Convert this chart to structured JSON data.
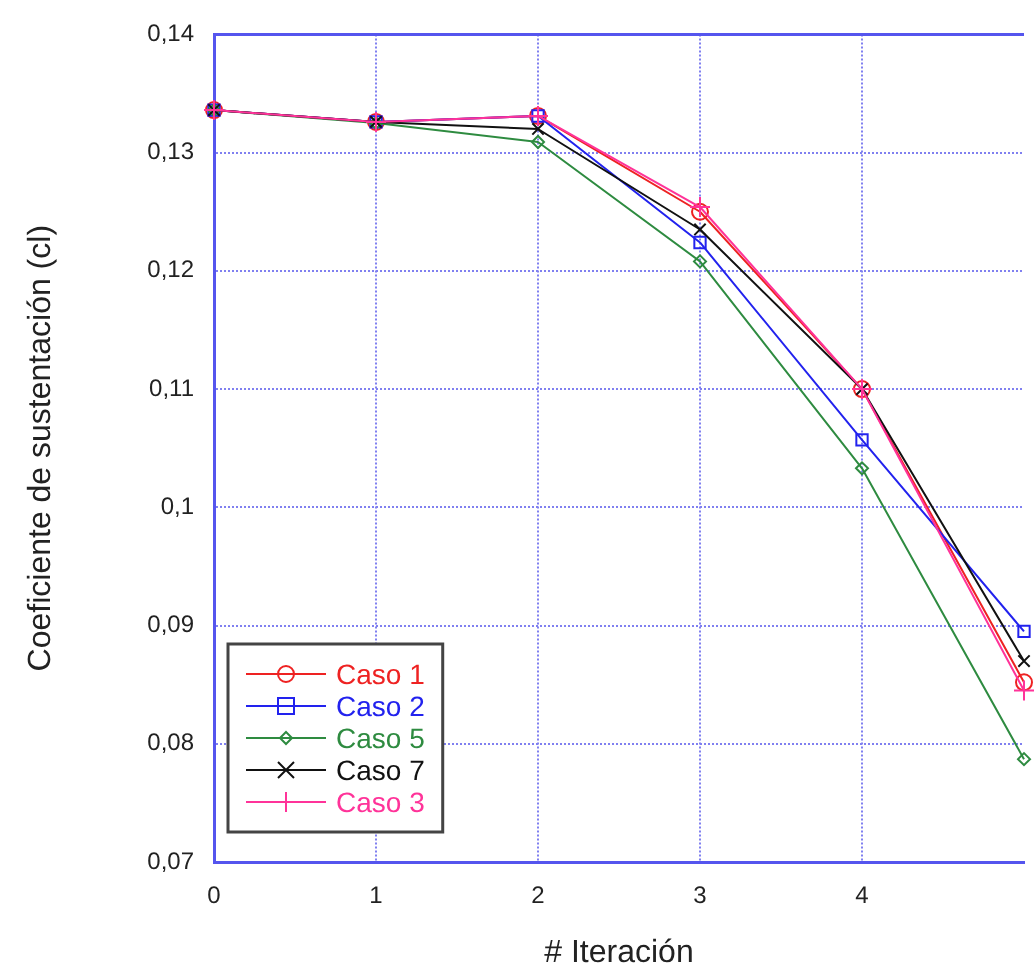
{
  "chart_data": {
    "type": "line",
    "xlabel": "# Iteración",
    "ylabel": "Coeficiente de sustentación (cl)",
    "x": [
      0,
      1,
      2,
      3,
      4,
      5
    ],
    "series": [
      {
        "name": "Caso 1",
        "color": "#ee2222",
        "marker": "circle",
        "values": [
          0.1336,
          0.1326,
          0.1331,
          0.125,
          0.11,
          0.0852
        ]
      },
      {
        "name": "Caso 2",
        "color": "#2222ee",
        "marker": "square",
        "values": [
          0.1336,
          0.1326,
          0.1331,
          0.1224,
          0.1057,
          0.0895
        ]
      },
      {
        "name": "Caso 5",
        "color": "#2e8b40",
        "marker": "diamond",
        "values": [
          0.1336,
          0.1325,
          0.1309,
          0.1208,
          0.1033,
          0.0787
        ]
      },
      {
        "name": "Caso 7",
        "color": "#111111",
        "marker": "x",
        "values": [
          0.1336,
          0.1326,
          0.132,
          0.1235,
          0.11,
          0.087
        ]
      },
      {
        "name": "Caso 3",
        "color": "#ff3399",
        "marker": "cross",
        "values": [
          0.1336,
          0.1326,
          0.1331,
          0.1254,
          0.11,
          0.0845
        ]
      }
    ],
    "xlim": [
      0,
      5
    ],
    "xticks": [
      0,
      1,
      2,
      3,
      4
    ],
    "ylim": [
      0.07,
      0.14
    ],
    "yticks": [
      {
        "value": 0.07,
        "label": "0,07"
      },
      {
        "value": 0.08,
        "label": "0,08"
      },
      {
        "value": 0.09,
        "label": "0,09"
      },
      {
        "value": 0.1,
        "label": "0,1"
      },
      {
        "value": 0.11,
        "label": "0,11"
      },
      {
        "value": 0.12,
        "label": "0,12"
      },
      {
        "value": 0.13,
        "label": "0,13"
      },
      {
        "value": 0.14,
        "label": "0,14"
      }
    ],
    "grid": true,
    "legend": "bottom left",
    "line_style": "solid"
  }
}
